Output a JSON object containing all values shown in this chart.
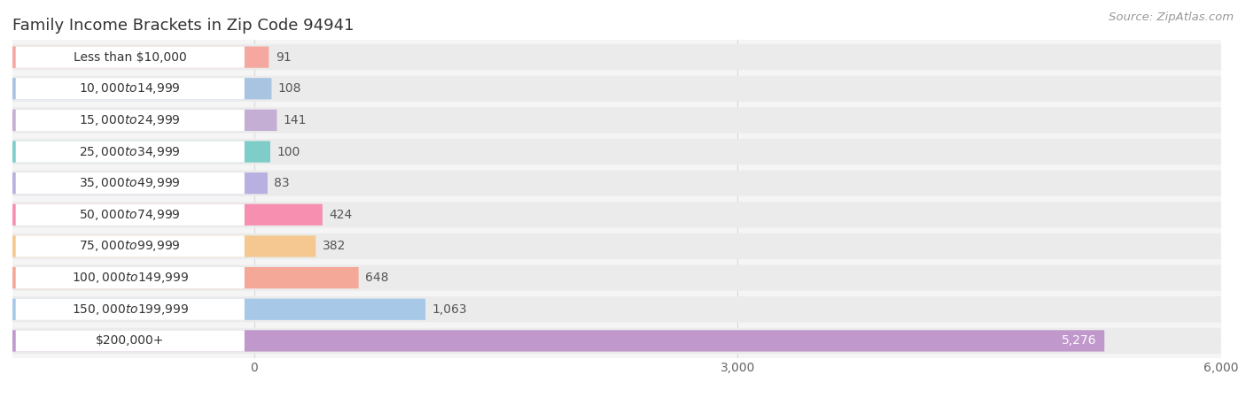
{
  "title": "Family Income Brackets in Zip Code 94941",
  "source": "Source: ZipAtlas.com",
  "categories": [
    "Less than $10,000",
    "$10,000 to $14,999",
    "$15,000 to $24,999",
    "$25,000 to $34,999",
    "$35,000 to $49,999",
    "$50,000 to $74,999",
    "$75,000 to $99,999",
    "$100,000 to $149,999",
    "$150,000 to $199,999",
    "$200,000+"
  ],
  "values": [
    91,
    108,
    141,
    100,
    83,
    424,
    382,
    648,
    1063,
    5276
  ],
  "bar_colors": [
    "#f4a8a0",
    "#a8c4e0",
    "#c4aed4",
    "#7ecdc8",
    "#b8b0e0",
    "#f790b0",
    "#f4c890",
    "#f4a898",
    "#a8c8e8",
    "#c098cc"
  ],
  "xlim": [
    0,
    6000
  ],
  "xticks": [
    0,
    3000,
    6000
  ],
  "xtick_labels": [
    "0",
    "3,000",
    "6,000"
  ],
  "bg_bar_color": "#ebebeb",
  "label_bg_color": "#ffffff",
  "title_fontsize": 13,
  "label_fontsize": 10,
  "value_fontsize": 10,
  "axis_fontsize": 10,
  "source_fontsize": 9.5,
  "fig_bg_color": "#ffffff",
  "plot_bg_color": "#f5f5f5",
  "grid_color": "#d8d8d8",
  "value_color": "#555555",
  "value_inside_color": "#ffffff",
  "label_text_color": "#333333",
  "title_color": "#333333",
  "source_color": "#999999"
}
